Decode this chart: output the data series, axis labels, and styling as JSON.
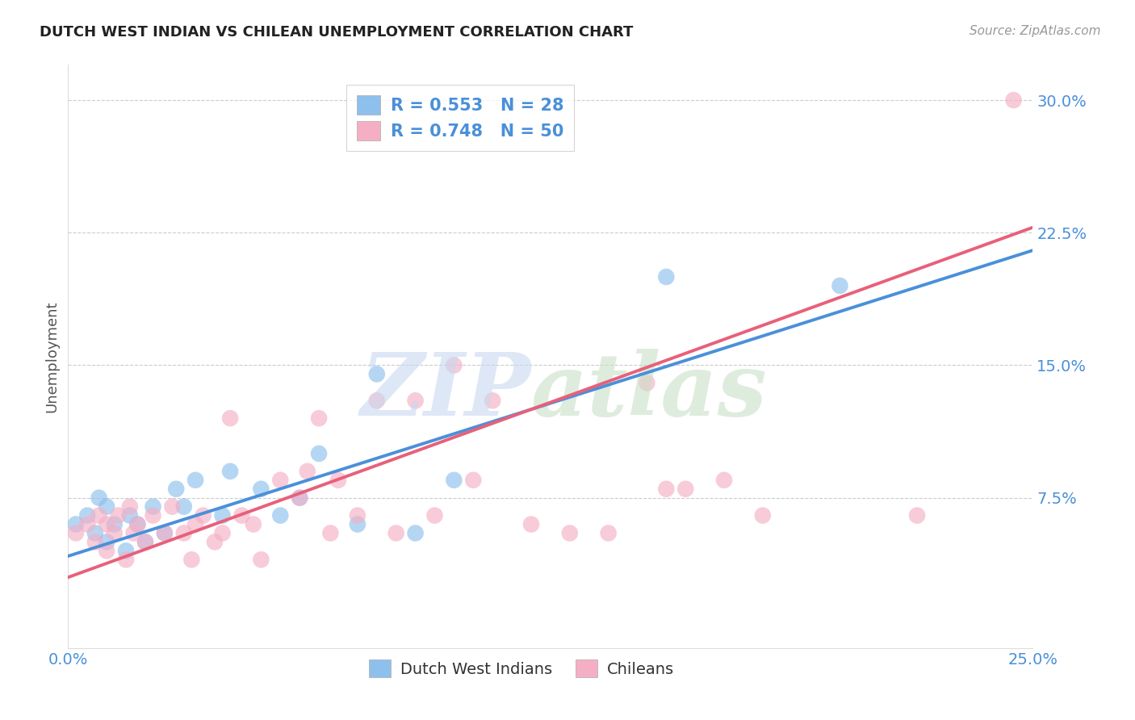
{
  "title": "DUTCH WEST INDIAN VS CHILEAN UNEMPLOYMENT CORRELATION CHART",
  "source": "Source: ZipAtlas.com",
  "ylabel": "Unemployment",
  "xlim": [
    0.0,
    0.25
  ],
  "ylim": [
    -0.01,
    0.32
  ],
  "xticks": [
    0.0,
    0.05,
    0.1,
    0.15,
    0.2,
    0.25
  ],
  "yticks": [
    0.075,
    0.15,
    0.225,
    0.3
  ],
  "ytick_labels": [
    "7.5%",
    "15.0%",
    "22.5%",
    "30.0%"
  ],
  "blue_color": "#8ec0ee",
  "pink_color": "#f5afc5",
  "blue_line_color": "#4a90d9",
  "pink_line_color": "#e8607a",
  "legend_text_color": "#4a90d9",
  "blue_R": 0.553,
  "blue_N": 28,
  "pink_R": 0.748,
  "pink_N": 50,
  "blue_points_x": [
    0.002,
    0.005,
    0.007,
    0.008,
    0.01,
    0.01,
    0.012,
    0.015,
    0.016,
    0.018,
    0.02,
    0.022,
    0.025,
    0.028,
    0.03,
    0.033,
    0.04,
    0.042,
    0.05,
    0.055,
    0.06,
    0.065,
    0.075,
    0.08,
    0.09,
    0.1,
    0.155,
    0.2
  ],
  "blue_points_y": [
    0.06,
    0.065,
    0.055,
    0.075,
    0.05,
    0.07,
    0.06,
    0.045,
    0.065,
    0.06,
    0.05,
    0.07,
    0.055,
    0.08,
    0.07,
    0.085,
    0.065,
    0.09,
    0.08,
    0.065,
    0.075,
    0.1,
    0.06,
    0.145,
    0.055,
    0.085,
    0.2,
    0.195
  ],
  "pink_points_x": [
    0.002,
    0.005,
    0.007,
    0.008,
    0.01,
    0.01,
    0.012,
    0.013,
    0.015,
    0.016,
    0.017,
    0.018,
    0.02,
    0.022,
    0.025,
    0.027,
    0.03,
    0.032,
    0.033,
    0.035,
    0.038,
    0.04,
    0.042,
    0.045,
    0.048,
    0.05,
    0.055,
    0.06,
    0.062,
    0.065,
    0.068,
    0.07,
    0.075,
    0.08,
    0.085,
    0.09,
    0.095,
    0.1,
    0.105,
    0.11,
    0.12,
    0.13,
    0.14,
    0.15,
    0.155,
    0.16,
    0.17,
    0.18,
    0.22,
    0.245
  ],
  "pink_points_y": [
    0.055,
    0.06,
    0.05,
    0.065,
    0.045,
    0.06,
    0.055,
    0.065,
    0.04,
    0.07,
    0.055,
    0.06,
    0.05,
    0.065,
    0.055,
    0.07,
    0.055,
    0.04,
    0.06,
    0.065,
    0.05,
    0.055,
    0.12,
    0.065,
    0.06,
    0.04,
    0.085,
    0.075,
    0.09,
    0.12,
    0.055,
    0.085,
    0.065,
    0.13,
    0.055,
    0.13,
    0.065,
    0.15,
    0.085,
    0.13,
    0.06,
    0.055,
    0.055,
    0.14,
    0.08,
    0.08,
    0.085,
    0.065,
    0.065,
    0.3
  ],
  "blue_trend_y_start": 0.042,
  "blue_trend_y_end": 0.215,
  "pink_trend_y_start": 0.03,
  "pink_trend_y_end": 0.228,
  "watermark_zip": "ZIP",
  "watermark_atlas": "atlas",
  "legend1_label": "Dutch West Indians",
  "legend2_label": "Chileans"
}
